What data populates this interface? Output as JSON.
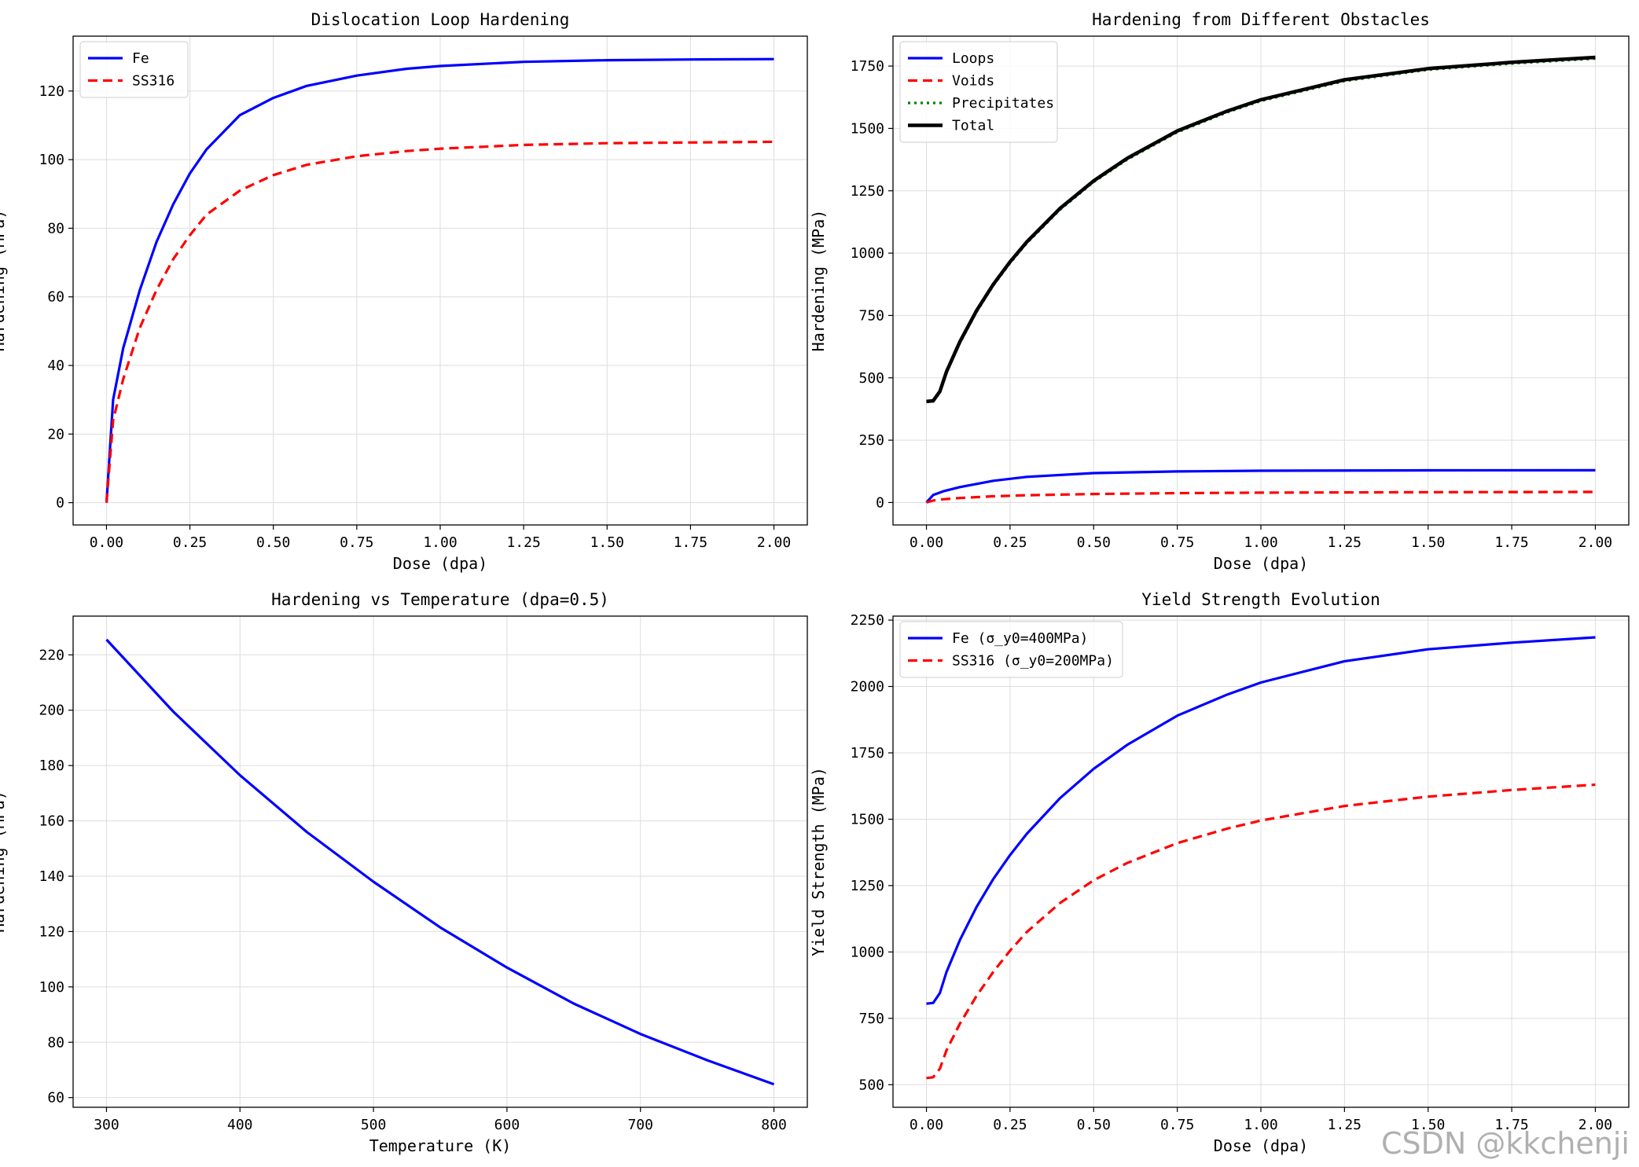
{
  "watermark": "CSDN @kkchenji",
  "chart_data": [
    {
      "type": "line",
      "title": "Dislocation Loop Hardening",
      "xlabel": "Dose (dpa)",
      "ylabel": "Hardening (MPa)",
      "xlim": [
        -0.1,
        2.1
      ],
      "ylim": [
        -6.5,
        136
      ],
      "xticks": [
        0,
        0.25,
        0.5,
        0.75,
        1.0,
        1.25,
        1.5,
        1.75,
        2.0
      ],
      "xtick_labels": [
        "0.00",
        "0.25",
        "0.50",
        "0.75",
        "1.00",
        "1.25",
        "1.50",
        "1.75",
        "2.00"
      ],
      "yticks": [
        0,
        20,
        40,
        60,
        80,
        100,
        120
      ],
      "ytick_labels": [
        "0",
        "20",
        "40",
        "60",
        "80",
        "100",
        "120"
      ],
      "grid": true,
      "legend": "top-left",
      "series": [
        {
          "name": "Fe",
          "color": "#0000ff",
          "dash": "solid",
          "x": [
            0,
            0.02,
            0.05,
            0.1,
            0.15,
            0.2,
            0.25,
            0.3,
            0.4,
            0.5,
            0.6,
            0.75,
            0.9,
            1.0,
            1.25,
            1.5,
            1.75,
            2.0
          ],
          "y": [
            0,
            30,
            45,
            62,
            76,
            87,
            96,
            103,
            113,
            118,
            121.5,
            124.5,
            126.5,
            127.3,
            128.5,
            129,
            129.2,
            129.3
          ]
        },
        {
          "name": "SS316",
          "color": "#ff0000",
          "dash": "dashed",
          "x": [
            0,
            0.02,
            0.05,
            0.1,
            0.15,
            0.2,
            0.25,
            0.3,
            0.4,
            0.5,
            0.6,
            0.75,
            0.9,
            1.0,
            1.25,
            1.5,
            1.75,
            2.0
          ],
          "y": [
            0,
            24,
            36,
            51,
            62,
            71,
            78,
            84,
            91,
            95.5,
            98.5,
            101,
            102.5,
            103.2,
            104.3,
            104.8,
            105,
            105.2
          ]
        }
      ]
    },
    {
      "type": "line",
      "title": "Hardening from Different Obstacles",
      "xlabel": "Dose (dpa)",
      "ylabel": "Hardening (MPa)",
      "xlim": [
        -0.1,
        2.1
      ],
      "ylim": [
        -90,
        1870
      ],
      "xticks": [
        0,
        0.25,
        0.5,
        0.75,
        1.0,
        1.25,
        1.5,
        1.75,
        2.0
      ],
      "xtick_labels": [
        "0.00",
        "0.25",
        "0.50",
        "0.75",
        "1.00",
        "1.25",
        "1.50",
        "1.75",
        "2.00"
      ],
      "yticks": [
        0,
        250,
        500,
        750,
        1000,
        1250,
        1500,
        1750
      ],
      "ytick_labels": [
        "0",
        "250",
        "500",
        "750",
        "1000",
        "1250",
        "1500",
        "1750"
      ],
      "grid": true,
      "legend": "top-left",
      "series": [
        {
          "name": "Loops",
          "color": "#0000ff",
          "dash": "solid",
          "x": [
            0,
            0.02,
            0.05,
            0.1,
            0.2,
            0.3,
            0.5,
            0.75,
            1.0,
            1.5,
            2.0
          ],
          "y": [
            0,
            30,
            45,
            62,
            87,
            103,
            118,
            124.5,
            127.3,
            129,
            129.3
          ]
        },
        {
          "name": "Voids",
          "color": "#ff0000",
          "dash": "dashed",
          "x": [
            0,
            0.02,
            0.05,
            0.1,
            0.2,
            0.3,
            0.5,
            0.75,
            1.0,
            1.5,
            2.0
          ],
          "y": [
            0,
            8,
            13,
            18,
            25,
            29,
            34,
            37.5,
            39.5,
            41.5,
            42.5
          ]
        },
        {
          "name": "Precipitates",
          "color": "#008000",
          "dash": "dotted",
          "x": [
            0,
            0.02,
            0.04,
            0.06,
            0.1,
            0.15,
            0.2,
            0.25,
            0.3,
            0.4,
            0.5,
            0.6,
            0.75,
            0.9,
            1.0,
            1.25,
            1.5,
            1.75,
            2.0
          ],
          "y": [
            405,
            405,
            440,
            520,
            640,
            765,
            870,
            960,
            1040,
            1175,
            1285,
            1375,
            1485,
            1565,
            1610,
            1690,
            1735,
            1760,
            1780
          ]
        },
        {
          "name": "Total",
          "color": "#000000",
          "dash": "solid",
          "x": [
            0,
            0.02,
            0.04,
            0.06,
            0.1,
            0.15,
            0.2,
            0.25,
            0.3,
            0.4,
            0.5,
            0.6,
            0.75,
            0.9,
            1.0,
            1.25,
            1.5,
            1.75,
            2.0
          ],
          "y": [
            405,
            408,
            445,
            525,
            645,
            770,
            875,
            965,
            1045,
            1180,
            1290,
            1380,
            1490,
            1570,
            1615,
            1695,
            1740,
            1765,
            1785
          ]
        }
      ]
    },
    {
      "type": "line",
      "title": "Hardening vs Temperature (dpa=0.5)",
      "xlabel": "Temperature (K)",
      "ylabel": "Hardening (MPa)",
      "xlim": [
        275,
        825
      ],
      "ylim": [
        56.5,
        234
      ],
      "xticks": [
        300,
        400,
        500,
        600,
        700,
        800
      ],
      "xtick_labels": [
        "300",
        "400",
        "500",
        "600",
        "700",
        "800"
      ],
      "yticks": [
        60,
        80,
        100,
        120,
        140,
        160,
        180,
        200,
        220
      ],
      "ytick_labels": [
        "60",
        "80",
        "100",
        "120",
        "140",
        "160",
        "180",
        "200",
        "220"
      ],
      "grid": true,
      "legend": "none",
      "series": [
        {
          "name": "Hardening",
          "color": "#0000ff",
          "dash": "solid",
          "x": [
            300,
            350,
            400,
            450,
            500,
            550,
            600,
            650,
            700,
            750,
            800
          ],
          "y": [
            225.5,
            199.5,
            176.5,
            156,
            138,
            121.5,
            107,
            94,
            83,
            73.5,
            64.8
          ]
        }
      ]
    },
    {
      "type": "line",
      "title": "Yield Strength Evolution",
      "xlabel": "Dose (dpa)",
      "ylabel": "Yield Strength (MPa)",
      "xlim": [
        -0.1,
        2.1
      ],
      "ylim": [
        415,
        2265
      ],
      "xticks": [
        0,
        0.25,
        0.5,
        0.75,
        1.0,
        1.25,
        1.5,
        1.75,
        2.0
      ],
      "xtick_labels": [
        "0.00",
        "0.25",
        "0.50",
        "0.75",
        "1.00",
        "1.25",
        "1.50",
        "1.75",
        "2.00"
      ],
      "yticks": [
        500,
        750,
        1000,
        1250,
        1500,
        1750,
        2000,
        2250
      ],
      "ytick_labels": [
        "500",
        "750",
        "1000",
        "1250",
        "1500",
        "1750",
        "2000",
        "2250"
      ],
      "grid": true,
      "legend": "top-left",
      "series": [
        {
          "name": "Fe (σ_y0=400MPa)",
          "color": "#0000ff",
          "dash": "solid",
          "x": [
            0,
            0.02,
            0.04,
            0.06,
            0.1,
            0.15,
            0.2,
            0.25,
            0.3,
            0.4,
            0.5,
            0.6,
            0.75,
            0.9,
            1.0,
            1.25,
            1.5,
            1.75,
            2.0
          ],
          "y": [
            805,
            808,
            845,
            925,
            1045,
            1170,
            1275,
            1365,
            1445,
            1580,
            1690,
            1780,
            1890,
            1970,
            2015,
            2095,
            2140,
            2165,
            2185
          ]
        },
        {
          "name": "SS316 (σ_y0=200MPa)",
          "color": "#ff0000",
          "dash": "dashed",
          "x": [
            0,
            0.02,
            0.04,
            0.06,
            0.1,
            0.15,
            0.2,
            0.25,
            0.3,
            0.4,
            0.5,
            0.6,
            0.75,
            0.9,
            1.0,
            1.25,
            1.5,
            1.75,
            2.0
          ],
          "y": [
            525,
            528,
            560,
            630,
            730,
            835,
            925,
            1005,
            1075,
            1185,
            1270,
            1335,
            1410,
            1465,
            1495,
            1550,
            1585,
            1610,
            1630
          ]
        }
      ]
    }
  ]
}
